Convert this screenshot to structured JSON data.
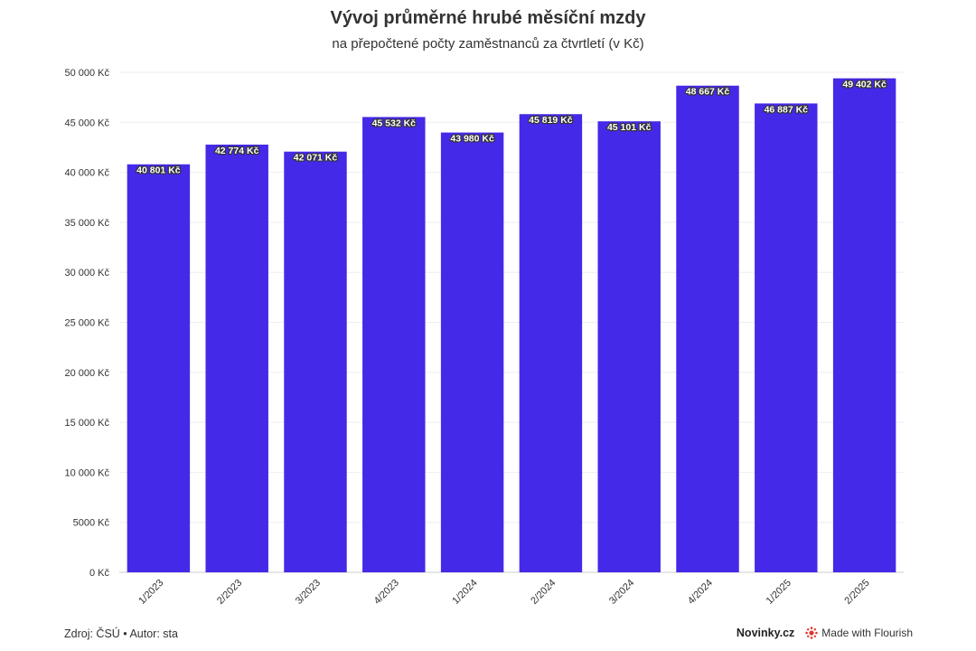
{
  "chart_data": {
    "type": "bar",
    "title": "Vývoj průměrné hrubé měsíční mzdy",
    "subtitle": "na přepočtené počty zaměstnanců za čtvrtletí (v Kč)",
    "categories": [
      "1/2023",
      "2/2023",
      "3/2023",
      "4/2023",
      "1/2024",
      "2/2024",
      "3/2024",
      "4/2024",
      "1/2025",
      "2/2025"
    ],
    "values": [
      40801,
      42774,
      42071,
      45532,
      43980,
      45819,
      45101,
      48667,
      46887,
      49402
    ],
    "value_labels": [
      "40 801 Kč",
      "42 774 Kč",
      "42 071 Kč",
      "45 532 Kč",
      "43 980 Kč",
      "45 819 Kč",
      "45 101 Kč",
      "48 667 Kč",
      "46 887 Kč",
      "49 402 Kč"
    ],
    "ylim": [
      0,
      50000
    ],
    "yticks": [
      0,
      5000,
      10000,
      15000,
      20000,
      25000,
      30000,
      35000,
      40000,
      45000,
      50000
    ],
    "ytick_labels": [
      "0 Kč",
      "5000 Kč",
      "10 000 Kč",
      "15 000 Kč",
      "20 000 Kč",
      "25 000 Kč",
      "30 000 Kč",
      "35 000 Kč",
      "40 000 Kč",
      "45 000 Kč",
      "50 000 Kč"
    ],
    "xlabel": "",
    "ylabel": "",
    "grid": true,
    "bar_color": "#4429e8"
  },
  "footer": {
    "source": "Zdroj: ČSÚ • Autor: sta",
    "brand": "Novinky.cz",
    "made_with": "Made with Flourish"
  },
  "colors": {
    "accent": "#4429e8",
    "flourish_icon": "#e0342b"
  }
}
